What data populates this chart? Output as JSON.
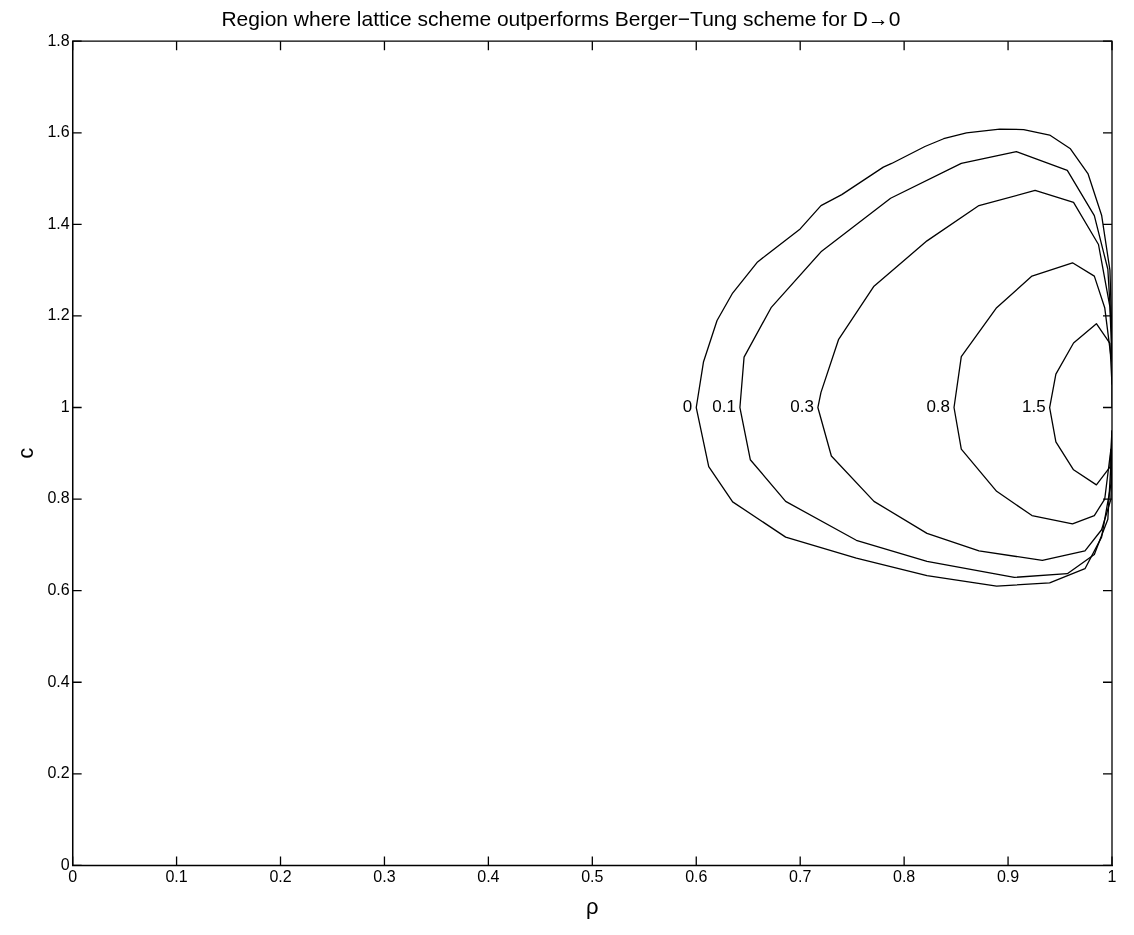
{
  "chart_data": {
    "type": "line",
    "title": "Region where lattice scheme outperforms Berger−Tung scheme for D→0",
    "xlabel": "ρ",
    "ylabel": "c",
    "xlim": [
      0,
      1
    ],
    "xticks": [
      0,
      0.1,
      0.2,
      0.3,
      0.4,
      0.5,
      0.6,
      0.7,
      0.8,
      0.9,
      1
    ],
    "ylim": [
      0,
      1.8
    ],
    "yticks": [
      0,
      0.2,
      0.4,
      0.6,
      0.8,
      1,
      1.2,
      1.4,
      1.6,
      1.8
    ],
    "grid": false,
    "legend": false,
    "marker": "none",
    "line_style": "solid",
    "series": [
      {
        "name": "0",
        "color": "#000000",
        "x": [
          1.0,
          1.0,
          0.998,
          0.99,
          0.977,
          0.96,
          0.94,
          0.915,
          0.892,
          0.86,
          0.838,
          0.82,
          0.788,
          0.78,
          0.74,
          0.72,
          0.7,
          0.659,
          0.635,
          0.62,
          0.607,
          0.6,
          0.612,
          0.635,
          0.686,
          0.754,
          0.822,
          0.889,
          0.94,
          0.974,
          0.99,
          0.999,
          1.0
        ],
        "values": [
          1.0,
          1.15,
          1.3,
          1.42,
          1.51,
          1.565,
          1.595,
          1.607,
          1.608,
          1.6,
          1.587,
          1.57,
          1.533,
          1.525,
          1.465,
          1.441,
          1.39,
          1.318,
          1.25,
          1.19,
          1.1,
          1.0,
          0.871,
          0.794,
          0.717,
          0.671,
          0.633,
          0.61,
          0.617,
          0.648,
          0.717,
          0.833,
          0.95
        ]
      },
      {
        "name": "0.1",
        "color": "#000000",
        "x": [
          1.0,
          0.996,
          0.983,
          0.957,
          0.908,
          0.855,
          0.787,
          0.72,
          0.672,
          0.646,
          0.642,
          0.652,
          0.686,
          0.754,
          0.822,
          0.906,
          0.957,
          0.983,
          0.996,
          1.0
        ],
        "values": [
          1.15,
          1.302,
          1.419,
          1.518,
          1.559,
          1.533,
          1.457,
          1.34,
          1.218,
          1.11,
          1.0,
          0.886,
          0.795,
          0.71,
          0.664,
          0.629,
          0.637,
          0.679,
          0.756,
          0.92
        ]
      },
      {
        "name": "0.3",
        "color": "#000000",
        "x": [
          1.0,
          0.998,
          0.987,
          0.963,
          0.926,
          0.872,
          0.822,
          0.771,
          0.737,
          0.72,
          0.717,
          0.73,
          0.771,
          0.822,
          0.872,
          0.933,
          0.974,
          0.99,
          0.999,
          1.0
        ],
        "values": [
          1.1,
          1.22,
          1.356,
          1.448,
          1.474,
          1.441,
          1.364,
          1.265,
          1.149,
          1.033,
          1.0,
          0.894,
          0.795,
          0.725,
          0.687,
          0.666,
          0.687,
          0.733,
          0.8,
          0.9
        ]
      },
      {
        "name": "0.8",
        "color": "#000000",
        "x": [
          0.999,
          0.993,
          0.983,
          0.962,
          0.923,
          0.889,
          0.855,
          0.848,
          0.855,
          0.889,
          0.923,
          0.962,
          0.983,
          0.993,
          0.999
        ],
        "values": [
          1.11,
          1.218,
          1.287,
          1.316,
          1.287,
          1.218,
          1.111,
          1.0,
          0.909,
          0.817,
          0.764,
          0.746,
          0.764,
          0.8,
          0.91
        ]
      },
      {
        "name": "1.5",
        "color": "#000000",
        "x": [
          1.0,
          0.998,
          0.985,
          0.963,
          0.946,
          0.94,
          0.946,
          0.963,
          0.985,
          0.998,
          1.0
        ],
        "values": [
          1.05,
          1.14,
          1.183,
          1.141,
          1.073,
          1.0,
          0.925,
          0.864,
          0.831,
          0.87,
          0.95
        ]
      }
    ]
  }
}
